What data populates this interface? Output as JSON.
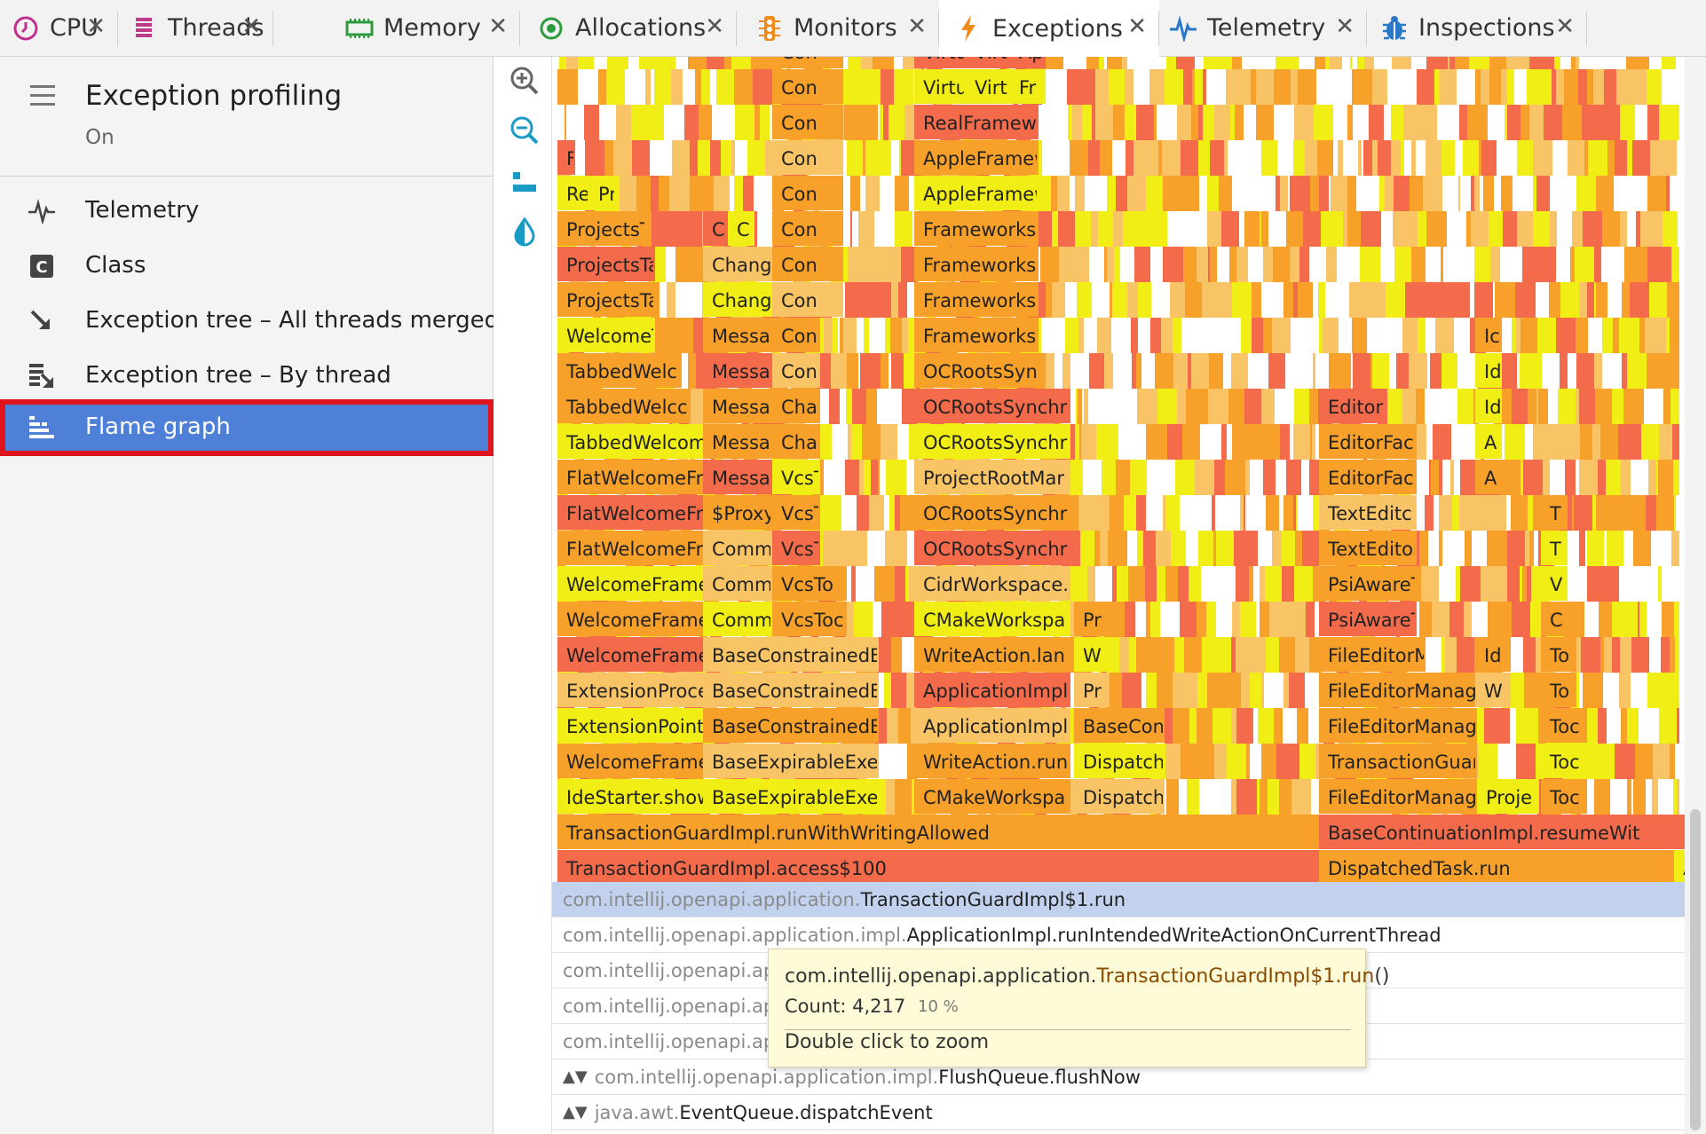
{
  "tabs": [
    {
      "label": "CPU",
      "icon": "clock-icon",
      "color": "#c0308e"
    },
    {
      "label": "Threads",
      "icon": "threads-icon",
      "color": "#c03a8a"
    },
    {
      "label": "Memory",
      "icon": "memory-chip-icon",
      "color": "#2e9a3e"
    },
    {
      "label": "Allocations",
      "icon": "allocations-icon",
      "color": "#2e9a3e"
    },
    {
      "label": "Monitors",
      "icon": "monitors-icon",
      "color": "#f08a1a"
    },
    {
      "label": "Exceptions",
      "icon": "lightning-icon",
      "color": "#f08a1a",
      "active": true
    },
    {
      "label": "Telemetry",
      "icon": "pulse-icon",
      "color": "#2a79c8"
    },
    {
      "label": "Inspections",
      "icon": "bug-icon",
      "color": "#2a79c8"
    }
  ],
  "profiling": {
    "title": "Exception profiling",
    "status": "On"
  },
  "nav": [
    {
      "label": "Telemetry",
      "icon": "pulse-icon"
    },
    {
      "label": "Class",
      "icon": "class-c-icon"
    },
    {
      "label": "Exception tree – All threads merged",
      "icon": "merged-tree-icon"
    },
    {
      "label": "Exception tree – By thread",
      "icon": "thread-tree-icon"
    },
    {
      "label": "Flame graph",
      "icon": "flame-graph-icon",
      "selected": true
    }
  ],
  "tools": [
    "zoom-in-icon",
    "zoom-out-icon",
    "flame-layout-icon",
    "color-drop-icon"
  ],
  "colors": {
    "red": "#f46b4c",
    "orange": "#f7a02a",
    "yellow": "#f0ee14",
    "lightorange": "#f9c466",
    "accent": "#4f80d8"
  },
  "flame_frames": [
    [
      "Con",
      "Virtu",
      "Virt",
      "Ap"
    ],
    [
      "Con",
      "Virtu",
      "Virt",
      "Fr"
    ],
    [
      "Con",
      "RealFrameworl"
    ],
    [
      "F",
      "Con",
      "AppleFramewc"
    ],
    [
      "Re",
      "Pr",
      "Con",
      "AppleFramewc"
    ],
    [
      "ProjectsT",
      "C",
      "C",
      "Con",
      "FrameworksSe"
    ],
    [
      "ProjectsTa",
      "Change",
      "Con",
      "FrameworksSe"
    ],
    [
      "ProjectsTa",
      "Change",
      "Con",
      "FrameworksRo"
    ],
    [
      "WelcomeT.",
      "Messag",
      "Con",
      "FrameworksRo",
      "Ic"
    ],
    [
      "TabbedWelc",
      "Messag",
      "Con",
      "OCRootsSynch",
      "Id"
    ],
    [
      "TabbedWelcc",
      "Messag",
      "Char",
      "OCRootsSynchr",
      "EditorIr",
      "Id"
    ],
    [
      "TabbedWelcom",
      "Messag",
      "Char",
      "OCRootsSynchr",
      "EditorFac",
      "A"
    ],
    [
      "FlatWelcomeFrar",
      "Messag",
      "VcsTc",
      "ProjectRootMar",
      "EditorFac",
      "A"
    ],
    [
      "FlatWelcomeFrar",
      "$Proxy",
      "VcsTc",
      "OCRootsSynchr",
      "TextEditc",
      "T"
    ],
    [
      "FlatWelcomeFrar",
      "Commit",
      "VcsTc",
      "OCRootsSynchr",
      "TextEditorI",
      "T"
    ],
    [
      "WelcomeFrame$(",
      "Commit",
      "VcsTo",
      "CidrWorkspace.",
      "PsiAwareTe",
      "V"
    ],
    [
      "WelcomeFrame$(",
      "Commit",
      "VcsToc",
      "CMakeWorkspa",
      "Pr",
      "PsiAwareTe",
      "C"
    ],
    [
      "WelcomeFrame$(",
      "BaseConstrainedE",
      "WriteAction.lan",
      "W",
      "FileEditorM",
      "Id",
      "To"
    ],
    [
      "ExtensionProcess",
      "BaseConstrainedE",
      "ApplicationImpl",
      "Pr",
      "FileEditorManag",
      "W",
      "To"
    ],
    [
      "ExtensionPointN",
      "BaseConstrainedE",
      "ApplicationImpl",
      "BaseConl",
      "FileEditorManag",
      "Toc"
    ],
    [
      "WelcomeFrame$Cc",
      "BaseExpirableExe",
      "WriteAction.run",
      "Dispatch",
      "TransactionGuar",
      "Toc"
    ],
    [
      "IdeStarter.showWe",
      "BaseExpirableExe",
      "CMakeWorkspa",
      "Dispatch",
      "FileEditorManag",
      "Proje",
      "Toc"
    ],
    [
      "TransactionGuardImpl.runWithWritingAllowed",
      "BaseContinuationImpl.resumeWit"
    ],
    [
      "TransactionGuardImpl.access$100",
      "DispatchedTask.run",
      "A"
    ]
  ],
  "stack": [
    {
      "pkg": "com.intellij.openapi.application.",
      "cls": "TransactionGuardImpl$1.run",
      "selected": true
    },
    {
      "pkg": "com.intellij.openapi.application.impl.",
      "cls": "ApplicationImpl.runIntendedWriteActionOnCurrentThread"
    },
    {
      "pkg": "com.intellij.openapi.app",
      "cls": ""
    },
    {
      "pkg": "com.intellij.openapi.app",
      "cls": ""
    },
    {
      "pkg": "com.intellij.openapi.app",
      "cls": ""
    },
    {
      "pkg": "com.intellij.openapi.application.impl.",
      "cls": "FlushQueue.flushNow",
      "collapsed": true
    },
    {
      "pkg": "java.awt.",
      "cls": "EventQueue.dispatchEvent",
      "collapsed": true
    }
  ],
  "tooltip": {
    "pkg": "com.intellij.openapi.application.",
    "cls": "TransactionGuardImpl$1.run",
    "parens": "()",
    "count": "Count: 4,217",
    "percent": "10 %",
    "hint": "Double click to zoom"
  },
  "ui": {
    "collapse_glyph": "▲▼"
  }
}
